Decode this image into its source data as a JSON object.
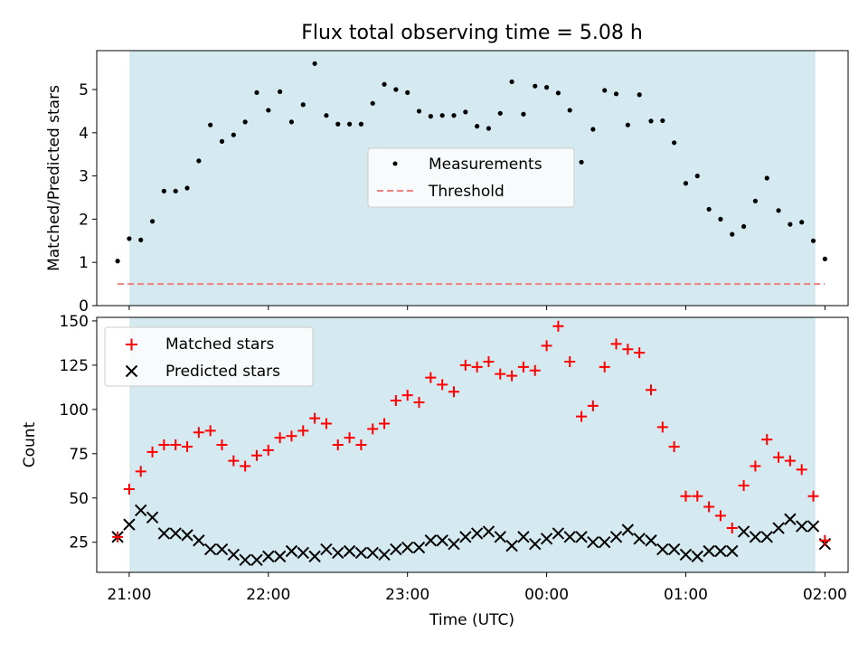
{
  "colors": {
    "band": "#d4eaf0",
    "threshold": "#f08080",
    "matched": "#ff0000",
    "predicted": "#000000",
    "measurement": "#000000"
  },
  "chart_data": [
    {
      "type": "scatter",
      "title": "Flux total observing time = 5.08 h",
      "xlabel": "",
      "ylabel": "Matched/Predicted stars",
      "ylim": [
        0,
        5.9
      ],
      "yticks": [
        "0",
        "1",
        "2",
        "3",
        "4",
        "5"
      ],
      "grid": false,
      "legend_position": "center",
      "series": [
        {
          "name": "Measurements",
          "marker": "dot",
          "x": [
            "20:55",
            "21:00",
            "21:05",
            "21:10",
            "21:15",
            "21:20",
            "21:25",
            "21:30",
            "21:35",
            "21:40",
            "21:45",
            "21:50",
            "21:55",
            "22:00",
            "22:05",
            "22:10",
            "22:15",
            "22:20",
            "22:25",
            "22:30",
            "22:35",
            "22:40",
            "22:45",
            "22:50",
            "22:55",
            "23:00",
            "23:05",
            "23:10",
            "23:15",
            "23:20",
            "23:25",
            "23:30",
            "23:35",
            "23:40",
            "23:45",
            "23:50",
            "23:55",
            "00:00",
            "00:05",
            "00:10",
            "00:15",
            "00:20",
            "00:25",
            "00:30",
            "00:35",
            "00:40",
            "00:45",
            "00:50",
            "00:55",
            "01:00",
            "01:05",
            "01:10",
            "01:15",
            "01:20",
            "01:25",
            "01:30",
            "01:35",
            "01:40",
            "01:45",
            "01:50",
            "01:55",
            "02:00"
          ],
          "values": [
            1.03,
            1.55,
            1.52,
            1.95,
            2.65,
            2.65,
            2.72,
            3.35,
            4.18,
            3.8,
            3.95,
            4.25,
            4.93,
            4.52,
            4.95,
            4.25,
            4.65,
            5.6,
            4.4,
            4.2,
            4.2,
            4.2,
            4.68,
            5.12,
            5.0,
            4.93,
            4.5,
            4.38,
            4.4,
            4.4,
            4.48,
            4.15,
            4.1,
            4.45,
            5.18,
            4.43,
            5.08,
            5.05,
            4.92,
            4.52,
            3.32,
            4.08,
            4.98,
            4.9,
            4.18,
            4.88,
            4.27,
            4.28,
            3.77,
            2.83,
            3.0,
            2.23,
            2.0,
            1.65,
            1.83,
            2.42,
            2.95,
            2.2,
            1.88,
            1.93,
            1.5,
            1.08
          ]
        },
        {
          "name": "Threshold",
          "marker": "dashed-line",
          "x": [
            "20:55",
            "02:00"
          ],
          "values": [
            0.5,
            0.5
          ]
        }
      ]
    },
    {
      "type": "scatter",
      "title": "",
      "xlabel": "Time (UTC)",
      "ylabel": "Count",
      "ylim": [
        8,
        152
      ],
      "yticks": [
        "25",
        "50",
        "75",
        "100",
        "125",
        "150"
      ],
      "xticks": [
        "21:00",
        "22:00",
        "23:00",
        "00:00",
        "01:00",
        "02:00"
      ],
      "xlim": [
        "20:46",
        "02:10"
      ],
      "grid": false,
      "legend_position": "upper left",
      "series": [
        {
          "name": "Matched stars",
          "marker": "plus",
          "x": [
            "20:55",
            "21:00",
            "21:05",
            "21:10",
            "21:15",
            "21:20",
            "21:25",
            "21:30",
            "21:35",
            "21:40",
            "21:45",
            "21:50",
            "21:55",
            "22:00",
            "22:05",
            "22:10",
            "22:15",
            "22:20",
            "22:25",
            "22:30",
            "22:35",
            "22:40",
            "22:45",
            "22:50",
            "22:55",
            "23:00",
            "23:05",
            "23:10",
            "23:15",
            "23:20",
            "23:25",
            "23:30",
            "23:35",
            "23:40",
            "23:45",
            "23:50",
            "23:55",
            "00:00",
            "00:05",
            "00:10",
            "00:15",
            "00:20",
            "00:25",
            "00:30",
            "00:35",
            "00:40",
            "00:45",
            "00:50",
            "00:55",
            "01:00",
            "01:05",
            "01:10",
            "01:15",
            "01:20",
            "01:25",
            "01:30",
            "01:35",
            "01:40",
            "01:45",
            "01:50",
            "01:55",
            "02:00"
          ],
          "values": [
            28,
            55,
            65,
            76,
            80,
            80,
            79,
            87,
            88,
            80,
            71,
            68,
            74,
            77,
            84,
            85,
            88,
            95,
            92,
            80,
            84,
            80,
            89,
            92,
            105,
            108,
            104,
            118,
            114,
            110,
            125,
            124,
            127,
            120,
            119,
            124,
            122,
            136,
            147,
            127,
            96,
            102,
            124,
            137,
            134,
            132,
            111,
            90,
            79,
            51,
            51,
            45,
            40,
            33,
            57,
            68,
            83,
            73,
            71,
            66,
            51,
            26
          ]
        },
        {
          "name": "Predicted stars",
          "marker": "x",
          "x": [
            "20:55",
            "21:00",
            "21:05",
            "21:10",
            "21:15",
            "21:20",
            "21:25",
            "21:30",
            "21:35",
            "21:40",
            "21:45",
            "21:50",
            "21:55",
            "22:00",
            "22:05",
            "22:10",
            "22:15",
            "22:20",
            "22:25",
            "22:30",
            "22:35",
            "22:40",
            "22:45",
            "22:50",
            "22:55",
            "23:00",
            "23:05",
            "23:10",
            "23:15",
            "23:20",
            "23:25",
            "23:30",
            "23:35",
            "23:40",
            "23:45",
            "23:50",
            "23:55",
            "00:00",
            "00:05",
            "00:10",
            "00:15",
            "00:20",
            "00:25",
            "00:30",
            "00:35",
            "00:40",
            "00:45",
            "00:50",
            "00:55",
            "01:00",
            "01:05",
            "01:10",
            "01:15",
            "01:20",
            "01:25",
            "01:30",
            "01:35",
            "01:40",
            "01:45",
            "01:50",
            "01:55",
            "02:00"
          ],
          "values": [
            28,
            35,
            43,
            39,
            30,
            30,
            29,
            26,
            21,
            21,
            18,
            15,
            15,
            17,
            17,
            20,
            19,
            17,
            21,
            19,
            20,
            19,
            19,
            18,
            21,
            22,
            22,
            26,
            26,
            24,
            28,
            30,
            31,
            28,
            23,
            28,
            24,
            27,
            30,
            28,
            28,
            25,
            25,
            28,
            32,
            27,
            26,
            21,
            21,
            18,
            17,
            20,
            20,
            20,
            31,
            28,
            28,
            33,
            38,
            34,
            34,
            24
          ]
        }
      ]
    }
  ]
}
